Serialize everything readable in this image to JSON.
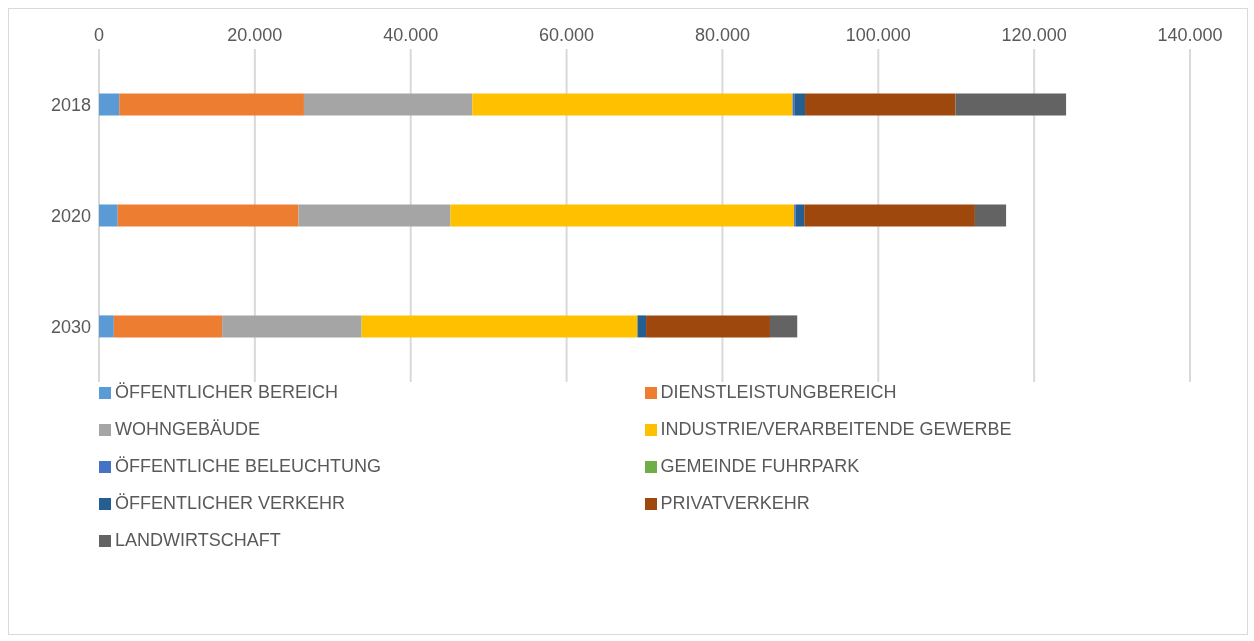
{
  "chart_data": {
    "type": "bar",
    "orientation": "horizontal",
    "stacked": true,
    "categories": [
      "2018",
      "2020",
      "2030"
    ],
    "series": [
      {
        "name": "ÖFFENTLICHER BEREICH",
        "color": "#5b9bd5",
        "values": [
          2600,
          2400,
          1900
        ]
      },
      {
        "name": "DIENSTLEISTUNGBEREICH",
        "color": "#ed7d31",
        "values": [
          23700,
          23200,
          13900
        ]
      },
      {
        "name": "WOHNGEBÄUDE",
        "color": "#a5a5a5",
        "values": [
          21600,
          19500,
          17900
        ]
      },
      {
        "name": "INDUSTRIE/VERARBEITENDE GEWERBE",
        "color": "#ffc000",
        "values": [
          41100,
          44100,
          35400
        ]
      },
      {
        "name": "ÖFFENTLICHE BELEUCHTUNG",
        "color": "#4472c4",
        "values": [
          300,
          200,
          null
        ]
      },
      {
        "name": "GEMEINDE FUHRPARK",
        "color": "#70ad47",
        "values": [
          null,
          null,
          null
        ]
      },
      {
        "name": "ÖFFENTLICHER VERKEHR",
        "color": "#255e91",
        "values": [
          1300,
          1100,
          1100
        ]
      },
      {
        "name": "PRIVATVERKEHR",
        "color": "#9e480e",
        "values": [
          19300,
          21900,
          15900
        ]
      },
      {
        "name": "LANDWIRTSCHAFT",
        "color": "#636363",
        "values": [
          14200,
          4000,
          3500
        ]
      }
    ],
    "xlim": [
      0,
      140000
    ],
    "xticks": [
      0,
      {
        "value": 20000,
        "label": "20.000"
      },
      {
        "value": 40000,
        "label": "40.000"
      },
      {
        "value": 60000,
        "label": "60.000"
      },
      {
        "value": 80000,
        "label": "80.000"
      },
      {
        "value": 100000,
        "label": "100.000"
      },
      {
        "value": 120000,
        "label": "120.000"
      },
      {
        "value": 140000,
        "label": "140.000"
      }
    ],
    "grid": "x",
    "legend": "bottom"
  }
}
